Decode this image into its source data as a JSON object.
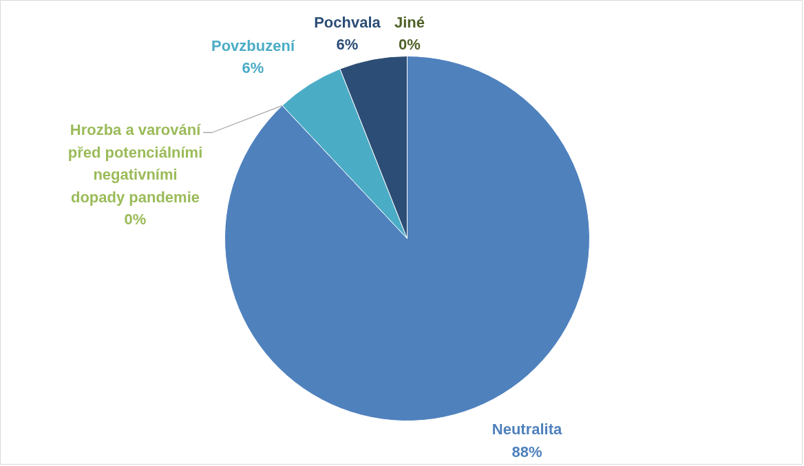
{
  "chart_data": {
    "type": "pie",
    "categories": [
      "Neutralita",
      "Hrozba a varování před potenciálními negativními dopady pandemie",
      "Povzbuzení",
      "Pochvala",
      "Jiné"
    ],
    "values": [
      88,
      0,
      6,
      6,
      0
    ],
    "value_labels": [
      "88%",
      "0%",
      "6%",
      "6%",
      "0%"
    ],
    "colors": [
      "#4f81bd",
      "#9bbb59",
      "#4bacc6",
      "#2c4d75",
      "#4f6228"
    ]
  }
}
